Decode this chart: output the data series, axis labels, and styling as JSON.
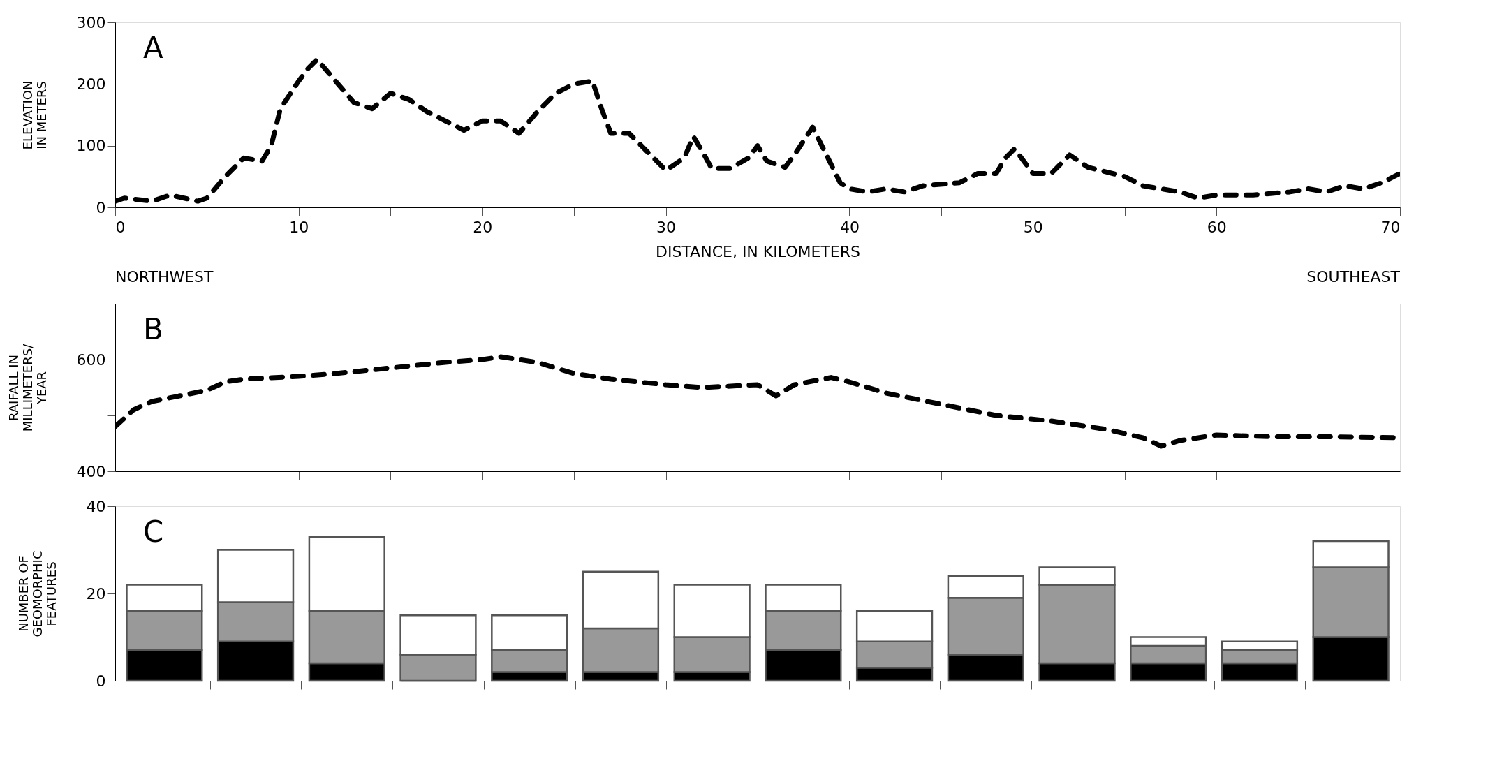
{
  "chart_data": [
    {
      "type": "line",
      "xlabel": "DISTANCE, IN KILOMETERS",
      "ylabel": "ELEVATION\nIN METERS",
      "annotations": [
        "A",
        "NORTHWEST",
        "SOUTHEAST"
      ],
      "xlim": [
        0,
        70
      ],
      "xticks": [
        0,
        {
          "value": 5,
          "label": null
        },
        10,
        {
          "value": 15,
          "label": null
        },
        20,
        {
          "value": 25,
          "label": null
        },
        30,
        {
          "value": 35,
          "label": null
        },
        40,
        {
          "value": 45,
          "label": null
        },
        50,
        {
          "value": 55,
          "label": null
        },
        60,
        {
          "value": 65,
          "label": null
        },
        70
      ],
      "ylim": [
        0,
        300
      ],
      "yticks": [
        0,
        100,
        200,
        300
      ],
      "grid": false,
      "line_style": "dashed",
      "marker": "none",
      "series": [
        {
          "color": "#000000",
          "x": [
            0,
            0.5,
            2,
            3,
            4.5,
            5,
            6,
            7,
            8,
            8.5,
            9,
            10,
            10.5,
            11,
            12,
            13,
            14,
            15,
            16,
            17,
            18,
            19,
            20,
            21,
            22,
            23,
            24,
            25,
            26,
            26.5,
            27,
            28,
            29,
            30,
            31,
            31.5,
            32,
            32.5,
            33.5,
            34.5,
            35,
            35.5,
            36.5,
            37,
            38,
            38.5,
            39,
            39.5,
            40,
            41,
            42,
            43,
            44,
            46,
            47,
            48,
            48.5,
            49,
            50,
            51,
            52,
            53,
            55,
            56,
            58,
            59,
            60,
            62,
            64,
            65,
            66,
            67,
            68,
            69,
            70
          ],
          "values": [
            10,
            15,
            10,
            20,
            10,
            15,
            50,
            80,
            75,
            100,
            160,
            205,
            225,
            240,
            205,
            170,
            160,
            185,
            175,
            155,
            140,
            125,
            140,
            140,
            120,
            155,
            185,
            200,
            205,
            160,
            120,
            120,
            90,
            60,
            80,
            115,
            90,
            63,
            63,
            80,
            100,
            75,
            65,
            85,
            130,
            100,
            70,
            40,
            30,
            25,
            30,
            25,
            35,
            40,
            55,
            55,
            80,
            95,
            55,
            55,
            85,
            65,
            50,
            35,
            25,
            15,
            20,
            20,
            25,
            30,
            25,
            35,
            30,
            40,
            55
          ]
        }
      ]
    },
    {
      "type": "line",
      "ylabel": "RAIFALL IN\nMILLIMETERS/\nYEAR",
      "annotations": [
        "B"
      ],
      "xlim": [
        0,
        70
      ],
      "xticks": [
        {
          "value": 5,
          "label": null
        },
        {
          "value": 10,
          "label": null
        },
        {
          "value": 15,
          "label": null
        },
        {
          "value": 20,
          "label": null
        },
        {
          "value": 25,
          "label": null
        },
        {
          "value": 30,
          "label": null
        },
        {
          "value": 35,
          "label": null
        },
        {
          "value": 40,
          "label": null
        },
        {
          "value": 45,
          "label": null
        },
        {
          "value": 50,
          "label": null
        },
        {
          "value": 55,
          "label": null
        },
        {
          "value": 60,
          "label": null
        },
        {
          "value": 65,
          "label": null
        }
      ],
      "ylim": [
        400,
        700
      ],
      "yticks": [
        400,
        {
          "value": 500,
          "label": null
        },
        600
      ],
      "tick_labels": "y",
      "grid": false,
      "line_style": "dashed",
      "marker": "none",
      "series": [
        {
          "color": "#000000",
          "x": [
            0,
            1,
            2,
            5,
            6,
            7,
            10,
            12,
            15,
            18,
            20,
            21,
            23,
            25,
            27,
            30,
            32,
            35,
            36,
            37,
            39,
            40,
            42,
            45,
            48,
            51,
            54,
            56,
            57,
            58,
            60,
            63,
            66,
            70
          ],
          "values": [
            480,
            510,
            525,
            545,
            560,
            565,
            570,
            575,
            585,
            595,
            600,
            605,
            595,
            575,
            565,
            555,
            550,
            555,
            535,
            555,
            568,
            560,
            540,
            520,
            500,
            490,
            475,
            460,
            445,
            455,
            465,
            462,
            462,
            460
          ]
        }
      ]
    },
    {
      "type": "bar",
      "stacked": true,
      "ylabel": "NUMBER OF\nGEOMORPHIC\nFEATURES",
      "annotations": [
        "C"
      ],
      "x": [
        2.5,
        7.5,
        12.5,
        17.5,
        22.5,
        27.5,
        32.5,
        37.5,
        42.5,
        47.5,
        52.5,
        57.5,
        62.5,
        67.5
      ],
      "xlim": [
        0,
        70
      ],
      "xticks": [
        {
          "value": 5,
          "label": null
        },
        {
          "value": 10,
          "label": null
        },
        {
          "value": 15,
          "label": null
        },
        {
          "value": 20,
          "label": null
        },
        {
          "value": 25,
          "label": null
        },
        {
          "value": 30,
          "label": null
        },
        {
          "value": 35,
          "label": null
        },
        {
          "value": 40,
          "label": null
        },
        {
          "value": 45,
          "label": null
        },
        {
          "value": 50,
          "label": null
        },
        {
          "value": 55,
          "label": null
        },
        {
          "value": 60,
          "label": null
        },
        {
          "value": 65,
          "label": null
        }
      ],
      "ylim": [
        0,
        40
      ],
      "yticks": [
        0,
        20,
        40
      ],
      "tick_labels": "y",
      "grid": false,
      "series": [
        {
          "color": "#000000",
          "values": [
            7,
            9,
            4,
            0,
            2,
            2,
            2,
            7,
            3,
            6,
            4,
            4,
            4,
            10
          ]
        },
        {
          "color": "#999999",
          "values": [
            9,
            9,
            12,
            6,
            5,
            10,
            8,
            9,
            6,
            13,
            18,
            4,
            3,
            16
          ]
        },
        {
          "color": "#ffffff",
          "values": [
            6,
            12,
            17,
            9,
            8,
            13,
            12,
            6,
            7,
            5,
            4,
            2,
            2,
            6
          ]
        }
      ]
    }
  ]
}
